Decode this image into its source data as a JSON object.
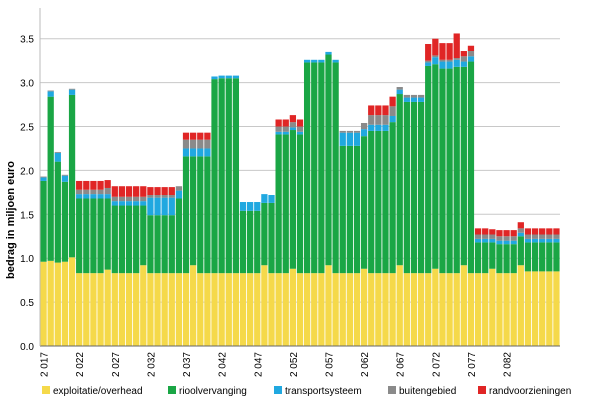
{
  "chart_data": {
    "type": "bar",
    "stacked": true,
    "ylabel": "bedrag in miljoen euro",
    "xlabel": "",
    "title": "",
    "ylim": [
      0,
      3.85
    ],
    "yticks": [
      "0.0",
      "0.5",
      "1.0",
      "1.5",
      "2.0",
      "2.5",
      "3.0",
      "3.5"
    ],
    "grid": "horizontal",
    "legend_position": "bottom",
    "x_start": 2017,
    "x_end": 2089,
    "x_tick_labels": [
      "2 017",
      "2 022",
      "2 027",
      "2 032",
      "2 037",
      "2 042",
      "2 047",
      "2 052",
      "2 057",
      "2 062",
      "2 067",
      "2 072",
      "2 077",
      "2 082"
    ],
    "colors": {
      "exploitatie/overhead": "#f5d94a",
      "rioolvervanging": "#1aa645",
      "transportsysteem": "#20a8e0",
      "buitengebied": "#8a8a8a",
      "randvoorzieningen": "#e02525"
    },
    "series": [
      {
        "name": "exploitatie/overhead",
        "values": [
          0.96,
          0.97,
          0.95,
          0.96,
          1.01,
          0.83,
          0.83,
          0.83,
          0.83,
          0.87,
          0.83,
          0.83,
          0.83,
          0.83,
          0.92,
          0.83,
          0.83,
          0.83,
          0.83,
          0.83,
          0.83,
          0.92,
          0.83,
          0.83,
          0.83,
          0.83,
          0.83,
          0.83,
          0.83,
          0.83,
          0.83,
          0.92,
          0.83,
          0.83,
          0.83,
          0.88,
          0.83,
          0.83,
          0.83,
          0.83,
          0.92,
          0.83,
          0.83,
          0.83,
          0.83,
          0.88,
          0.83,
          0.83,
          0.83,
          0.83,
          0.92,
          0.83,
          0.83,
          0.83,
          0.83,
          0.88,
          0.83,
          0.83,
          0.83,
          0.92,
          0.83,
          0.83,
          0.83,
          0.88,
          0.83,
          0.83,
          0.83,
          0.92,
          0.85,
          0.85,
          0.85,
          0.85,
          0.85
        ]
      },
      {
        "name": "rioolvervanging",
        "values": [
          0.92,
          1.87,
          1.15,
          0.91,
          1.85,
          0.85,
          0.85,
          0.85,
          0.85,
          0.81,
          0.77,
          0.77,
          0.77,
          0.77,
          0.68,
          0.66,
          0.66,
          0.66,
          0.66,
          0.85,
          1.33,
          1.24,
          1.33,
          1.33,
          2.21,
          2.22,
          2.22,
          2.22,
          0.71,
          0.71,
          0.71,
          0.71,
          0.8,
          1.58,
          1.58,
          1.58,
          1.58,
          2.4,
          2.4,
          2.4,
          2.4,
          2.4,
          1.45,
          1.45,
          1.45,
          1.51,
          1.62,
          1.62,
          1.62,
          1.72,
          1.95,
          1.95,
          1.95,
          1.95,
          2.36,
          2.33,
          2.33,
          2.33,
          2.35,
          2.26,
          2.41,
          0.35,
          0.35,
          0.3,
          0.33,
          0.33,
          0.33,
          0.33,
          0.33,
          0.33,
          0.33,
          0.33,
          0.33
        ]
      },
      {
        "name": "transportsysteem",
        "values": [
          0.04,
          0.06,
          0.1,
          0.07,
          0.06,
          0.05,
          0.05,
          0.05,
          0.05,
          0.05,
          0.05,
          0.05,
          0.05,
          0.05,
          0.05,
          0.2,
          0.2,
          0.2,
          0.2,
          0.09,
          0.09,
          0.09,
          0.09,
          0.09,
          0.03,
          0.03,
          0.03,
          0.03,
          0.1,
          0.1,
          0.1,
          0.1,
          0.09,
          0.03,
          0.03,
          0.03,
          0.03,
          0.03,
          0.03,
          0.03,
          0.03,
          0.03,
          0.15,
          0.15,
          0.15,
          0.08,
          0.07,
          0.07,
          0.07,
          0.07,
          0.05,
          0.05,
          0.05,
          0.05,
          0.04,
          0.08,
          0.08,
          0.08,
          0.08,
          0.06,
          0.06,
          0.04,
          0.04,
          0.04,
          0.04,
          0.04,
          0.04,
          0.04,
          0.04,
          0.04,
          0.04,
          0.04,
          0.04
        ]
      },
      {
        "name": "buitengebied",
        "values": [
          0.01,
          0.01,
          0.01,
          0.01,
          0.01,
          0.05,
          0.05,
          0.05,
          0.05,
          0.07,
          0.05,
          0.05,
          0.05,
          0.05,
          0.05,
          0.03,
          0.03,
          0.03,
          0.03,
          0.05,
          0.1,
          0.1,
          0.1,
          0.1,
          0.0,
          0.0,
          0.0,
          0.0,
          0.0,
          0.0,
          0.0,
          0.0,
          0.0,
          0.06,
          0.06,
          0.06,
          0.06,
          0.0,
          0.0,
          0.0,
          0.0,
          0.0,
          0.02,
          0.02,
          0.02,
          0.07,
          0.11,
          0.11,
          0.11,
          0.11,
          0.03,
          0.03,
          0.03,
          0.03,
          0.02,
          0.02,
          0.02,
          0.02,
          0.02,
          0.06,
          0.06,
          0.05,
          0.05,
          0.05,
          0.05,
          0.05,
          0.05,
          0.05,
          0.05,
          0.05,
          0.05,
          0.05,
          0.05
        ]
      },
      {
        "name": "randvoorzieningen",
        "values": [
          0.0,
          0.0,
          0.0,
          0.0,
          0.0,
          0.1,
          0.1,
          0.1,
          0.1,
          0.09,
          0.12,
          0.12,
          0.12,
          0.12,
          0.12,
          0.09,
          0.09,
          0.09,
          0.09,
          0.0,
          0.08,
          0.08,
          0.08,
          0.08,
          0.0,
          0.0,
          0.0,
          0.0,
          0.0,
          0.0,
          0.0,
          0.0,
          0.0,
          0.08,
          0.08,
          0.08,
          0.08,
          0.0,
          0.0,
          0.0,
          0.0,
          0.0,
          0.0,
          0.0,
          0.0,
          0.0,
          0.11,
          0.11,
          0.11,
          0.11,
          0.0,
          0.0,
          0.0,
          0.0,
          0.19,
          0.19,
          0.19,
          0.19,
          0.28,
          0.06,
          0.06,
          0.07,
          0.07,
          0.06,
          0.07,
          0.07,
          0.07,
          0.07,
          0.07,
          0.07,
          0.07,
          0.07,
          0.07
        ]
      }
    ]
  }
}
